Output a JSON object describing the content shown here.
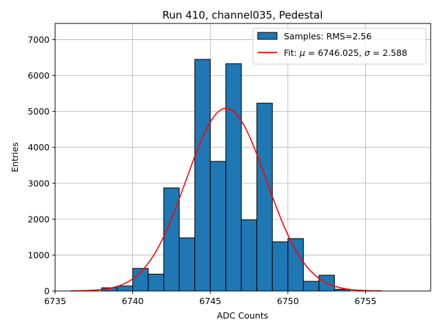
{
  "chart_data": {
    "type": "bar",
    "title": "Run 410, channel035, Pedestal",
    "xlabel": "ADC Counts",
    "ylabel": "Entries",
    "xlim": [
      6735,
      6759.2
    ],
    "ylim": [
      0,
      7450
    ],
    "xticks": [
      6735,
      6740,
      6745,
      6750,
      6755
    ],
    "yticks": [
      0,
      1000,
      2000,
      3000,
      4000,
      5000,
      6000,
      7000
    ],
    "grid": true,
    "legend_position": "top-right",
    "bar_color": "#1f77b4",
    "bar_edge_color": "#000000",
    "fit_color": "#ff0000",
    "histogram": {
      "name": "Samples: RMS=2.56",
      "bin_edges": [
        6738,
        6739,
        6740,
        6741,
        6742,
        6743,
        6744,
        6745,
        6746,
        6747,
        6748,
        6749,
        6750,
        6751,
        6752,
        6753,
        6754
      ],
      "counts": [
        90,
        140,
        630,
        470,
        2870,
        1480,
        6450,
        3610,
        6330,
        1980,
        5230,
        1370,
        1460,
        270,
        440,
        50
      ]
    },
    "fit": {
      "name_prefix": "Fit: ",
      "name_mu": "μ",
      "name_mu_rest": " = 6746.025, ",
      "name_sigma": "σ",
      "name_sigma_rest": " = 2.588",
      "mu": 6746.025,
      "sigma": 2.588,
      "amplitude": 5090,
      "x_range": [
        6736,
        6756
      ]
    }
  }
}
